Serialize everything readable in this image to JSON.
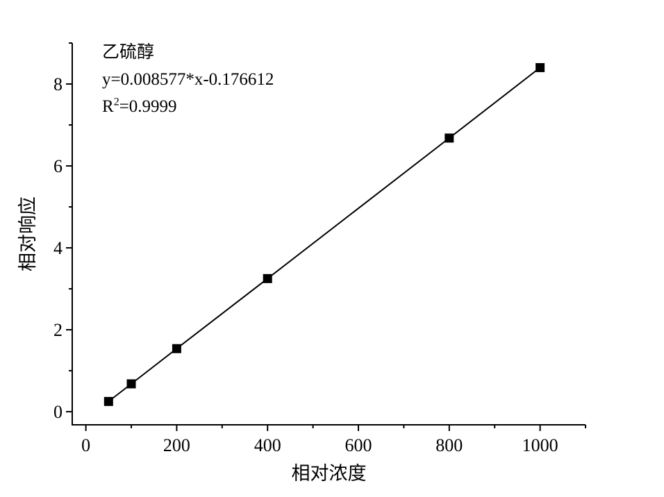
{
  "chart_data": {
    "type": "scatter",
    "connected_line": true,
    "title": "乙硫醇",
    "xlabel": "相对浓度",
    "ylabel": "相对响应",
    "x": [
      50,
      100,
      200,
      400,
      800,
      1000
    ],
    "y": [
      0.25,
      0.68,
      1.54,
      3.25,
      6.68,
      8.4
    ],
    "fit": {
      "slope": 0.008577,
      "intercept": -0.176612,
      "r_squared": 0.9999
    },
    "annotation": {
      "compound": "乙硫醇",
      "equation": "y=0.008577*x-0.176612",
      "r2_base": "R",
      "r2_sup": "2",
      "r2_rest": "=0.9999"
    },
    "xlim": [
      -30,
      1100
    ],
    "ylim": [
      -0.32,
      9.0
    ],
    "x_ticks_major": [
      0,
      200,
      400,
      600,
      800,
      1000
    ],
    "x_ticks_minor": [
      100,
      300,
      500,
      700,
      900,
      1100
    ],
    "y_ticks_major": [
      0,
      2,
      4,
      6,
      8
    ],
    "y_ticks_minor": [
      1,
      3,
      5,
      7,
      9
    ],
    "grid": false,
    "legend": "none",
    "marker_shape": "filled-square",
    "colors": {
      "background": "#ffffff",
      "axis": "#000000",
      "line": "#000000",
      "marker": "#000000",
      "text": "#000000"
    }
  }
}
